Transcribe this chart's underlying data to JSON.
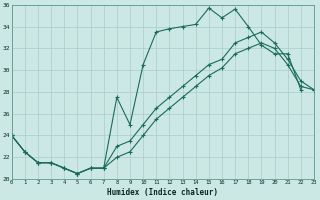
{
  "xlabel": "Humidex (Indice chaleur)",
  "xlim": [
    0,
    23
  ],
  "ylim": [
    20,
    36
  ],
  "xticks": [
    0,
    1,
    2,
    3,
    4,
    5,
    6,
    7,
    8,
    9,
    10,
    11,
    12,
    13,
    14,
    15,
    16,
    17,
    18,
    19,
    20,
    21,
    22,
    23
  ],
  "yticks": [
    20,
    22,
    24,
    26,
    28,
    30,
    32,
    34,
    36
  ],
  "bg_color": "#cce8e4",
  "grid_color": "#aaccca",
  "line_color": "#1a6b5a",
  "curve1_x": [
    0,
    1,
    2,
    3,
    4,
    5,
    6,
    7,
    8,
    9,
    10,
    11,
    12,
    13,
    14,
    15,
    16,
    17,
    18,
    19,
    20,
    21,
    22
  ],
  "curve1_y": [
    24.0,
    22.5,
    21.5,
    21.5,
    21.0,
    20.5,
    21.0,
    21.0,
    27.5,
    25.0,
    30.5,
    33.5,
    33.8,
    34.0,
    34.2,
    35.7,
    34.8,
    35.6,
    34.0,
    32.3,
    31.5,
    31.5,
    28.2
  ],
  "curve2_x": [
    0,
    1,
    2,
    3,
    4,
    5,
    6,
    7,
    8,
    9,
    10,
    11,
    12,
    13,
    14,
    15,
    16,
    17,
    18,
    19,
    20,
    21,
    22,
    23
  ],
  "curve2_y": [
    24.0,
    22.5,
    21.5,
    21.5,
    21.0,
    20.5,
    21.0,
    21.0,
    23.0,
    23.5,
    25.0,
    26.5,
    27.5,
    28.5,
    29.5,
    30.5,
    31.0,
    32.5,
    33.0,
    33.5,
    32.5,
    31.0,
    29.0,
    28.2
  ],
  "curve3_x": [
    0,
    1,
    2,
    3,
    4,
    5,
    6,
    7,
    8,
    9,
    10,
    11,
    12,
    13,
    14,
    15,
    16,
    17,
    18,
    19,
    20,
    21,
    22,
    23
  ],
  "curve3_y": [
    24.0,
    22.5,
    21.5,
    21.5,
    21.0,
    20.5,
    21.0,
    21.0,
    22.0,
    22.5,
    24.0,
    25.5,
    26.5,
    27.5,
    28.5,
    29.5,
    30.2,
    31.5,
    32.0,
    32.5,
    32.0,
    30.5,
    28.5,
    28.2
  ]
}
